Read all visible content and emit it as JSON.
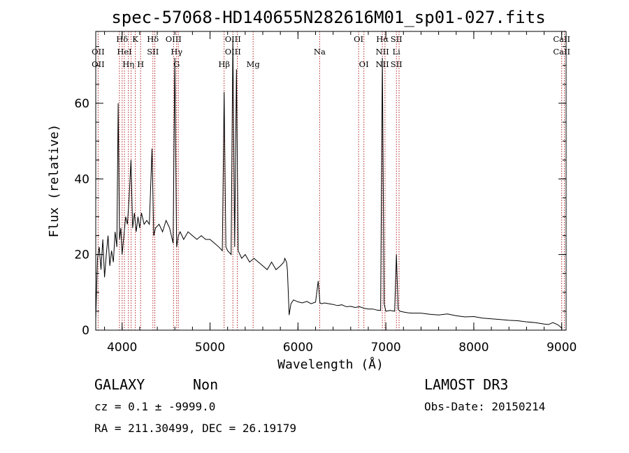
{
  "title": "spec-57068-HD140655N282616M01_sp01-027.fits",
  "chart_data": {
    "type": "line",
    "xlabel": "Wavelength (Å)",
    "ylabel": "Flux (relative)",
    "xlim": [
      3700,
      9050
    ],
    "ylim": [
      0,
      79
    ],
    "x_ticks": [
      4000,
      5000,
      6000,
      7000,
      8000,
      9000
    ],
    "y_ticks": [
      0,
      20,
      40,
      60
    ],
    "grid": false,
    "line_color": "#000000",
    "marker_color": "#b22222",
    "series": [
      {
        "x": [
          3700,
          3720,
          3740,
          3760,
          3780,
          3800,
          3820,
          3840,
          3860,
          3880,
          3900,
          3920,
          3940,
          3955,
          3970,
          3985,
          4000,
          4020,
          4040,
          4060,
          4080,
          4101,
          4120,
          4140,
          4160,
          4180,
          4200,
          4220,
          4250,
          4280,
          4310,
          4340,
          4360,
          4380,
          4420,
          4460,
          4500,
          4540,
          4580,
          4600,
          4620,
          4640,
          4660,
          4700,
          4750,
          4800,
          4850,
          4900,
          4950,
          5000,
          5050,
          5100,
          5140,
          5160,
          5180,
          5200,
          5240,
          5260,
          5280,
          5300,
          5320,
          5360,
          5400,
          5450,
          5500,
          5550,
          5600,
          5650,
          5700,
          5750,
          5800,
          5840,
          5850,
          5870,
          5880,
          5890,
          5900,
          5920,
          5950,
          6000,
          6050,
          6100,
          6150,
          6200,
          6230,
          6250,
          6270,
          6300,
          6350,
          6400,
          6450,
          6500,
          6550,
          6600,
          6650,
          6700,
          6750,
          6800,
          6850,
          6900,
          6940,
          6960,
          6980,
          7000,
          7050,
          7100,
          7120,
          7140,
          7160,
          7200,
          7250,
          7300,
          7400,
          7500,
          7600,
          7700,
          7800,
          7900,
          8000,
          8100,
          8200,
          8300,
          8400,
          8500,
          8600,
          8700,
          8800,
          8850,
          8900,
          8950,
          8980,
          9000
        ],
        "values": [
          3,
          19,
          22,
          16,
          24,
          14,
          20,
          25,
          17,
          21,
          18,
          26,
          22,
          60,
          24,
          27,
          20,
          25,
          30,
          28,
          35,
          45,
          27,
          31,
          26,
          30,
          27,
          31,
          28,
          29,
          28,
          48,
          25,
          27,
          28,
          26,
          29,
          27,
          23,
          72,
          22,
          25,
          26,
          24,
          26,
          25,
          24,
          25,
          24,
          24,
          23,
          22,
          21,
          63,
          22,
          21,
          20,
          77,
          22,
          69,
          21,
          19,
          20,
          18,
          19,
          18,
          17,
          16,
          18,
          16,
          17,
          18,
          19,
          18,
          16,
          10,
          4,
          7,
          8,
          7.5,
          7.2,
          7.6,
          7,
          7.4,
          13,
          7.2,
          7,
          7.2,
          7,
          6.8,
          6.5,
          6.7,
          6.2,
          6.3,
          6,
          6.2,
          5.8,
          5.6,
          5.6,
          5.3,
          5.2,
          72,
          7,
          5,
          5.2,
          5,
          20,
          5.5,
          5,
          4.8,
          4.6,
          4.5,
          4.5,
          4.2,
          4,
          4.3,
          3.8,
          3.5,
          3.6,
          3.2,
          3,
          2.8,
          2.6,
          2.5,
          2.2,
          2,
          1.6,
          1.5,
          2,
          1.5,
          1,
          0.5
        ]
      }
    ],
    "line_markers": [
      {
        "x": 3727,
        "labels": [
          {
            "text": "OII",
            "row": 2
          },
          {
            "text": "OII",
            "row": 3
          }
        ]
      },
      {
        "x": 3969,
        "labels": []
      },
      {
        "x": 4000,
        "labels": [
          {
            "text": "Hδ",
            "row": 1
          }
        ]
      },
      {
        "x": 4026,
        "labels": [
          {
            "text": "HeI",
            "row": 2
          }
        ]
      },
      {
        "x": 4071,
        "labels": [
          {
            "text": "Hη",
            "row": 3
          }
        ]
      },
      {
        "x": 4102,
        "labels": []
      },
      {
        "x": 4150,
        "labels": [
          {
            "text": "K",
            "row": 1
          }
        ]
      },
      {
        "x": 4210,
        "labels": [
          {
            "text": "H",
            "row": 3
          }
        ]
      },
      {
        "x": 4350,
        "labels": [
          {
            "text": "Hδ",
            "row": 1
          },
          {
            "text": "SII",
            "row": 2
          }
        ]
      },
      {
        "x": 4372,
        "labels": []
      },
      {
        "x": 4585,
        "labels": [
          {
            "text": "OIII",
            "row": 1
          }
        ]
      },
      {
        "x": 4620,
        "labels": [
          {
            "text": "Hγ",
            "row": 2
          },
          {
            "text": "G",
            "row": 3
          }
        ]
      },
      {
        "x": 4640,
        "labels": []
      },
      {
        "x": 5160,
        "labels": [
          {
            "text": "Hβ",
            "row": 3
          }
        ]
      },
      {
        "x": 5260,
        "labels": [
          {
            "text": "OIII",
            "row": 1
          },
          {
            "text": "OIII",
            "row": 2
          }
        ]
      },
      {
        "x": 5310,
        "labels": []
      },
      {
        "x": 5490,
        "labels": [
          {
            "text": "Mg",
            "row": 3
          }
        ]
      },
      {
        "x": 6247,
        "labels": [
          {
            "text": "Na",
            "row": 2
          }
        ]
      },
      {
        "x": 6690,
        "labels": [
          {
            "text": "OI",
            "row": 1
          }
        ]
      },
      {
        "x": 6750,
        "labels": [
          {
            "text": "OI",
            "row": 3
          }
        ]
      },
      {
        "x": 6960,
        "labels": [
          {
            "text": "Hα",
            "row": 1
          },
          {
            "text": "NII",
            "row": 2
          },
          {
            "text": "NII",
            "row": 3
          }
        ]
      },
      {
        "x": 6990,
        "labels": []
      },
      {
        "x": 7120,
        "labels": [
          {
            "text": "SII",
            "row": 1
          },
          {
            "text": "Li",
            "row": 2
          },
          {
            "text": "SII",
            "row": 3
          }
        ]
      },
      {
        "x": 7150,
        "labels": []
      },
      {
        "x": 9000,
        "labels": [
          {
            "text": "CaII",
            "row": 1
          },
          {
            "text": "CaII",
            "row": 2
          }
        ]
      },
      {
        "x": 9030,
        "labels": []
      }
    ]
  },
  "info": {
    "class": "GALAXY",
    "subclass": "Non",
    "survey": "LAMOST DR3",
    "cz": "cz = 0.1 ± -9999.0",
    "obs_date": "Obs-Date: 20150214",
    "radec": "RA = 211.30499, DEC =  26.19179"
  }
}
